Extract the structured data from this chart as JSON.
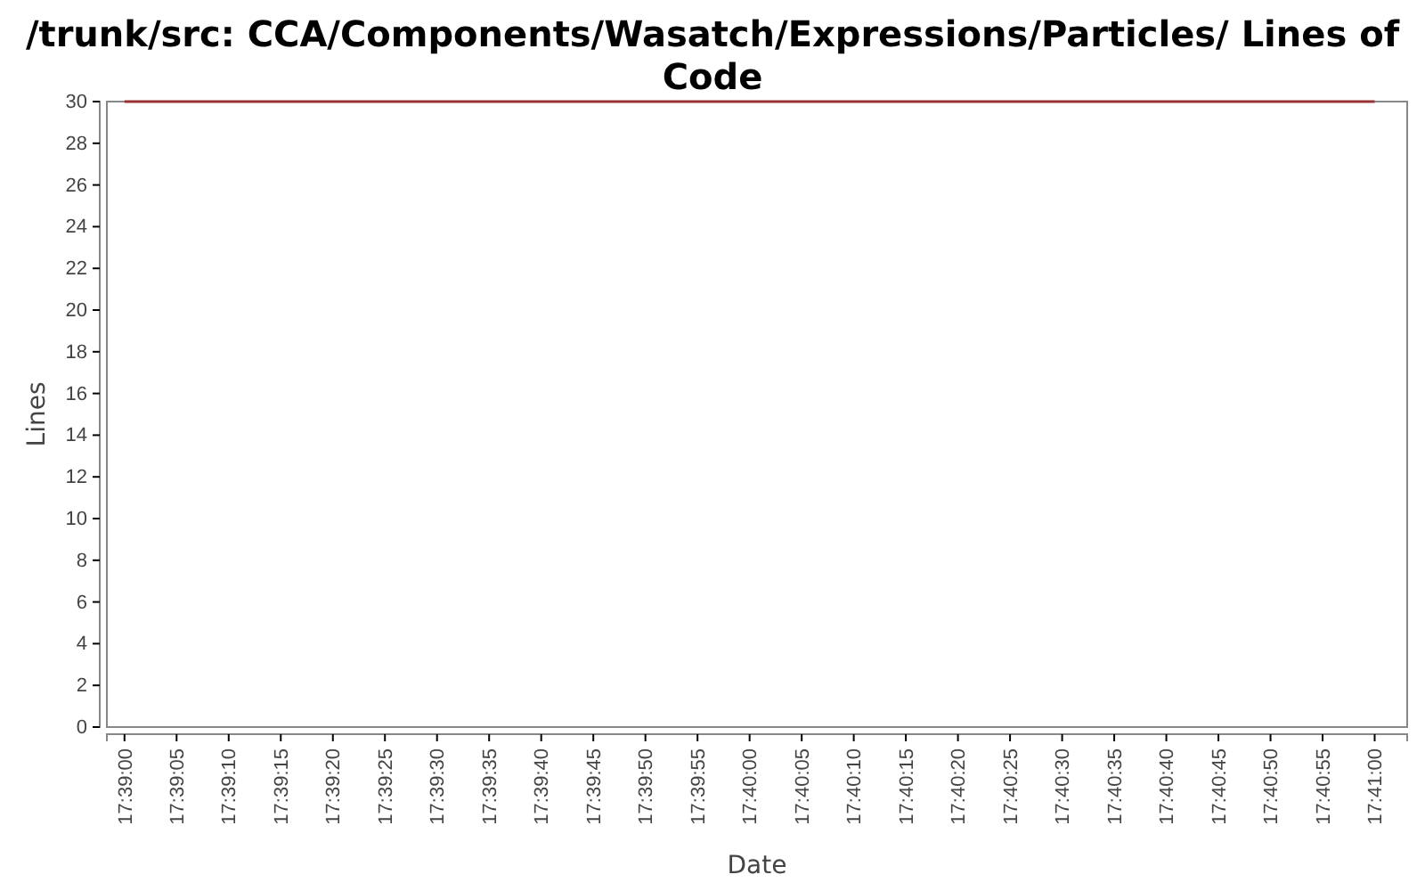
{
  "chart_data": {
    "type": "line",
    "title": "/trunk/src: CCA/Components/Wasatch/Expressions/Particles/ Lines of Code",
    "xlabel": "Date",
    "ylabel": "Lines",
    "series": [
      {
        "color": "#993333",
        "x": [
          17.65,
          17.683333
        ],
        "values": [
          30,
          30
        ]
      }
    ],
    "xlim": [
      17.64953,
      17.6842
    ],
    "ylim": [
      0,
      30
    ],
    "yticks": [
      0,
      2,
      4,
      6,
      8,
      10,
      12,
      14,
      16,
      18,
      20,
      22,
      24,
      26,
      28,
      30
    ],
    "xticks": [
      {
        "value": 17.65,
        "label": "17:39:00"
      },
      {
        "value": 17.651389,
        "label": "17:39:05"
      },
      {
        "value": 17.652778,
        "label": "17:39:10"
      },
      {
        "value": 17.654167,
        "label": "17:39:15"
      },
      {
        "value": 17.655556,
        "label": "17:39:20"
      },
      {
        "value": 17.656944,
        "label": "17:39:25"
      },
      {
        "value": 17.658333,
        "label": "17:39:30"
      },
      {
        "value": 17.659722,
        "label": "17:39:35"
      },
      {
        "value": 17.661111,
        "label": "17:39:40"
      },
      {
        "value": 17.6625,
        "label": "17:39:45"
      },
      {
        "value": 17.663889,
        "label": "17:39:50"
      },
      {
        "value": 17.665278,
        "label": "17:39:55"
      },
      {
        "value": 17.666667,
        "label": "17:40:00"
      },
      {
        "value": 17.668056,
        "label": "17:40:05"
      },
      {
        "value": 17.669444,
        "label": "17:40:10"
      },
      {
        "value": 17.670833,
        "label": "17:40:15"
      },
      {
        "value": 17.672222,
        "label": "17:40:20"
      },
      {
        "value": 17.673611,
        "label": "17:40:25"
      },
      {
        "value": 17.675,
        "label": "17:40:30"
      },
      {
        "value": 17.676389,
        "label": "17:40:35"
      },
      {
        "value": 17.677778,
        "label": "17:40:40"
      },
      {
        "value": 17.679167,
        "label": "17:40:45"
      },
      {
        "value": 17.680556,
        "label": "17:40:50"
      },
      {
        "value": 17.681944,
        "label": "17:40:55"
      },
      {
        "value": 17.683333,
        "label": "17:41:00"
      }
    ],
    "grid": false,
    "marker": "none",
    "line_style": "solid"
  }
}
